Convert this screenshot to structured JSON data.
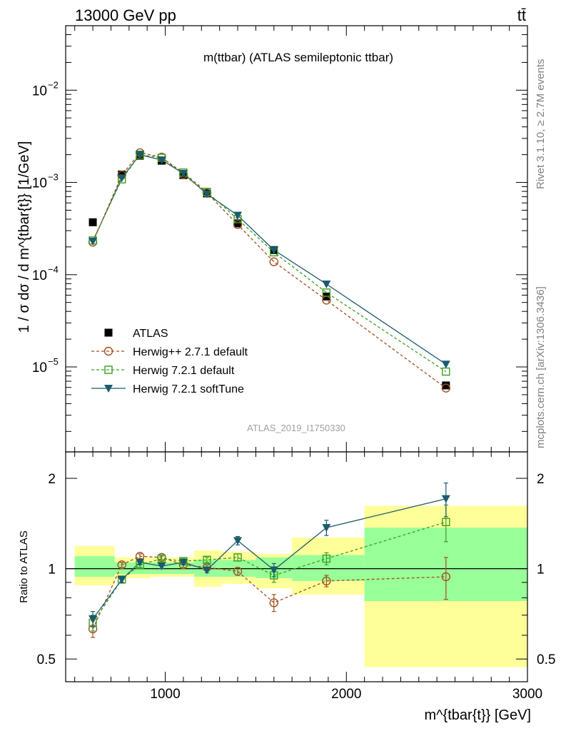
{
  "header": {
    "left": "13000 GeV pp",
    "right": "tt̄"
  },
  "side": {
    "version": "Rivet 3.1.10, ≥ 2.7M events",
    "source": "mcplots.cern.ch [arXiv:1306.3436]"
  },
  "chart_data": [
    {
      "type": "line",
      "title": "m(ttbar) (ATLAS semileptonic ttbar)",
      "watermark": "ATLAS_2019_I1750330",
      "ylabel": "1 / σ dσ / d m^{tbar{t}} [1/GeV]",
      "xlabel": "m^{tbar{t}} [GeV]",
      "yscale": "log",
      "ylim": [
        1.2e-06,
        0.05
      ],
      "xlim": [
        450,
        3000
      ],
      "y_ticks": [
        {
          "v": 1e-05,
          "label": "10",
          "exp": "−5"
        },
        {
          "v": 0.0001,
          "label": "10",
          "exp": "−4"
        },
        {
          "v": 0.001,
          "label": "10",
          "exp": "−3"
        },
        {
          "v": 0.01,
          "label": "10",
          "exp": "−2"
        }
      ],
      "x": [
        600,
        760,
        860,
        980,
        1100,
        1230,
        1400,
        1600,
        1890,
        2550
      ],
      "series": [
        {
          "name": "ATLAS",
          "style": "data",
          "color": "#000000",
          "values": [
            0.00037,
            0.00122,
            0.00195,
            0.00172,
            0.0012,
            0.00076,
            0.00036,
            0.000185,
            5.8e-05,
            6.3e-06
          ]
        },
        {
          "name": "Herwig++ 2.7.1 default",
          "style": "circle",
          "color": "#a0521e",
          "values": [
            0.000225,
            0.0012,
            0.0021,
            0.00188,
            0.00122,
            0.00077,
            0.00035,
            0.000138,
            5.3e-05,
            5.9e-06
          ]
        },
        {
          "name": "Herwig 7.2.1 default",
          "style": "square",
          "color": "#3aa021",
          "values": [
            0.000235,
            0.00108,
            0.002,
            0.00185,
            0.00128,
            0.00079,
            0.0004,
            0.000175,
            6.4e-05,
            8.9e-06
          ]
        },
        {
          "name": "Herwig 7.2.1 softTune",
          "style": "triangle",
          "color": "#1d5a6e",
          "values": [
            0.00023,
            0.00112,
            0.002,
            0.00175,
            0.00125,
            0.00075,
            0.00044,
            0.000185,
            7.9e-05,
            1.07e-05
          ]
        }
      ]
    },
    {
      "type": "line",
      "ylabel": "Ratio to ATLAS",
      "xlabel": "m^{tbar{t}} [GeV]",
      "yscale": "log",
      "ylim": [
        0.42,
        2.45
      ],
      "xlim": [
        450,
        3000
      ],
      "y_ticks": [
        {
          "v": 0.5,
          "label": "0.5"
        },
        {
          "v": 1,
          "label": "1"
        },
        {
          "v": 2,
          "label": "2"
        }
      ],
      "x_ticks": [
        {
          "v": 1000,
          "label": "1000"
        },
        {
          "v": 2000,
          "label": "2000"
        },
        {
          "v": 3000,
          "label": "3000"
        }
      ],
      "bands": [
        {
          "x0": 500,
          "x1": 720,
          "inner": [
            0.94,
            1.1
          ],
          "outer": [
            0.88,
            1.19
          ]
        },
        {
          "x0": 720,
          "x1": 920,
          "inner": [
            0.96,
            1.05
          ],
          "outer": [
            0.93,
            1.09
          ]
        },
        {
          "x0": 920,
          "x1": 1050,
          "inner": [
            0.96,
            1.05
          ],
          "outer": [
            0.94,
            1.09
          ]
        },
        {
          "x0": 1050,
          "x1": 1160,
          "inner": [
            0.96,
            1.05
          ],
          "outer": [
            0.94,
            1.09
          ]
        },
        {
          "x0": 1160,
          "x1": 1310,
          "inner": [
            0.94,
            1.07
          ],
          "outer": [
            0.87,
            1.15
          ]
        },
        {
          "x0": 1310,
          "x1": 1500,
          "inner": [
            0.94,
            1.07
          ],
          "outer": [
            0.89,
            1.14
          ]
        },
        {
          "x0": 1500,
          "x1": 1700,
          "inner": [
            0.93,
            1.09
          ],
          "outer": [
            0.86,
            1.12
          ]
        },
        {
          "x0": 1700,
          "x1": 2100,
          "inner": [
            0.91,
            1.11
          ],
          "outer": [
            0.82,
            1.27
          ]
        },
        {
          "x0": 2100,
          "x1": 3000,
          "inner": [
            0.78,
            1.37
          ],
          "outer": [
            0.47,
            1.62
          ]
        }
      ],
      "series": [
        {
          "name": "Herwig++ 2.7.1 default",
          "color": "#a0521e",
          "values": [
            0.63,
            1.03,
            1.1,
            1.09,
            1.03,
            1.01,
            0.98,
            0.77,
            0.91,
            0.94
          ],
          "errors": [
            0.04,
            0.02,
            0.02,
            0.02,
            0.02,
            0.02,
            0.03,
            0.05,
            0.04,
            0.15
          ]
        },
        {
          "name": "Herwig 7.2.1 default",
          "color": "#3aa021",
          "values": [
            0.66,
            0.92,
            1.03,
            1.08,
            1.06,
            1.07,
            1.09,
            0.95,
            1.08,
            1.43
          ],
          "errors": [
            0.04,
            0.02,
            0.02,
            0.02,
            0.02,
            0.02,
            0.03,
            0.05,
            0.05,
            0.2
          ]
        },
        {
          "name": "Herwig 7.2.1 softTune",
          "color": "#1d5a6e",
          "values": [
            0.68,
            0.92,
            1.05,
            1.02,
            1.05,
            0.99,
            1.24,
            0.99,
            1.37,
            1.71
          ],
          "errors": [
            0.04,
            0.02,
            0.02,
            0.02,
            0.02,
            0.02,
            0.04,
            0.05,
            0.08,
            0.22
          ]
        }
      ]
    }
  ]
}
